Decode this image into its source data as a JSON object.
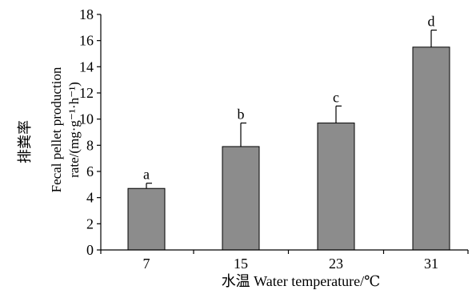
{
  "chart_data": {
    "type": "bar",
    "categories": [
      "7",
      "15",
      "23",
      "31"
    ],
    "values": [
      4.7,
      7.9,
      9.7,
      15.5
    ],
    "errors": [
      0.4,
      1.8,
      1.3,
      1.3
    ],
    "significance_letters": [
      "a",
      "b",
      "c",
      "d"
    ],
    "ylim": [
      0,
      18
    ],
    "yticks": [
      0,
      2,
      4,
      6,
      8,
      10,
      12,
      14,
      16,
      18
    ],
    "xlabel": "水温 Water temperature/℃",
    "ylabel_lines": [
      "排粪率",
      "Fecal pellet production",
      "rate/(mg·g⁻¹·h⁻¹)"
    ],
    "grid": false,
    "bar_color": "#8c8c8c"
  }
}
